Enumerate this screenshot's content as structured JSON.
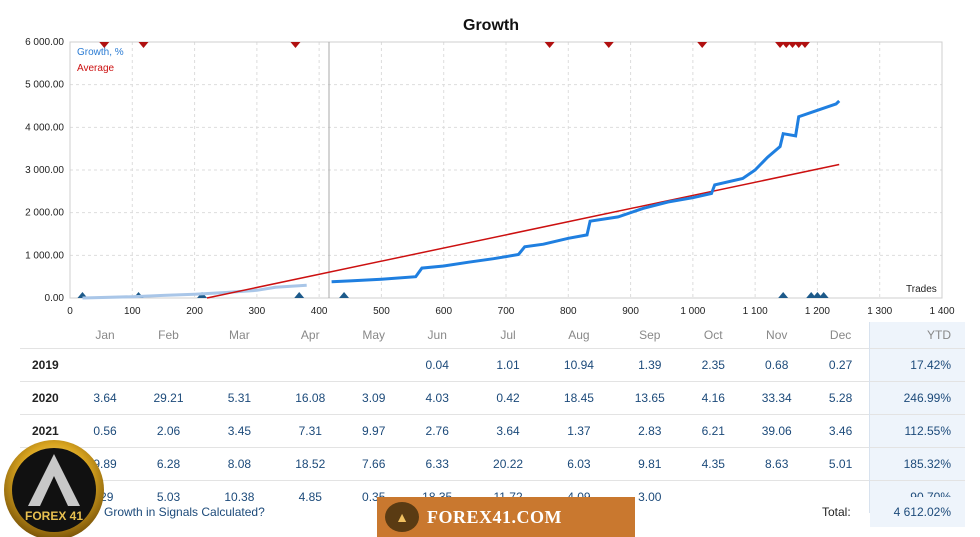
{
  "chart_data": {
    "type": "line",
    "title": "Growth",
    "xlabel": "Trades",
    "ylabel": "",
    "xlim": [
      0,
      1400
    ],
    "ylim": [
      0,
      6000
    ],
    "x_ticks": [
      "0",
      "100",
      "200",
      "300",
      "400",
      "500",
      "600",
      "700",
      "800",
      "900",
      "1 000",
      "1 100",
      "1 200",
      "1 300",
      "1 400"
    ],
    "y_ticks": [
      "0.00",
      "1 000.00",
      "2 000.00",
      "3 000.00",
      "4 000.00",
      "5 000.00",
      "6 000.00"
    ],
    "legend": [
      "Growth, %",
      "Average"
    ],
    "grid": true,
    "series": [
      {
        "name": "Growth, %",
        "color": "#1f7fe0",
        "points": [
          [
            20,
            0
          ],
          [
            100,
            30
          ],
          [
            150,
            60
          ],
          [
            200,
            90
          ],
          [
            250,
            130
          ],
          [
            300,
            180
          ],
          [
            330,
            250
          ],
          [
            380,
            300
          ],
          [
            420,
            380
          ],
          [
            450,
            400
          ],
          [
            500,
            440
          ],
          [
            555,
            500
          ],
          [
            565,
            700
          ],
          [
            600,
            750
          ],
          [
            640,
            840
          ],
          [
            680,
            920
          ],
          [
            720,
            1020
          ],
          [
            730,
            1200
          ],
          [
            760,
            1260
          ],
          [
            800,
            1400
          ],
          [
            830,
            1480
          ],
          [
            835,
            1800
          ],
          [
            880,
            1900
          ],
          [
            920,
            2100
          ],
          [
            960,
            2250
          ],
          [
            1000,
            2350
          ],
          [
            1030,
            2450
          ],
          [
            1035,
            2650
          ],
          [
            1080,
            2800
          ],
          [
            1100,
            3000
          ],
          [
            1120,
            3300
          ],
          [
            1140,
            3550
          ],
          [
            1145,
            3850
          ],
          [
            1165,
            3800
          ],
          [
            1170,
            4250
          ],
          [
            1200,
            4400
          ],
          [
            1230,
            4550
          ],
          [
            1235,
            4620
          ]
        ]
      },
      {
        "name": "Average",
        "color": "#cc1010",
        "points": [
          [
            220,
            0
          ],
          [
            1235,
            3130
          ]
        ]
      }
    ],
    "faded_until_x": 415
  },
  "table": {
    "months": [
      "Jan",
      "Feb",
      "Mar",
      "Apr",
      "May",
      "Jun",
      "Jul",
      "Aug",
      "Sep",
      "Oct",
      "Nov",
      "Dec"
    ],
    "ytd_label": "YTD",
    "rows": [
      {
        "year": "2019",
        "values": [
          "",
          "",
          "",
          "",
          "",
          "0.04",
          "1.01",
          "10.94",
          "1.39",
          "2.35",
          "0.68",
          "0.27"
        ],
        "ytd": "17.42%"
      },
      {
        "year": "2020",
        "values": [
          "3.64",
          "29.21",
          "5.31",
          "16.08",
          "3.09",
          "4.03",
          "0.42",
          "18.45",
          "13.65",
          "4.16",
          "33.34",
          "5.28"
        ],
        "ytd": "246.99%"
      },
      {
        "year": "2021",
        "values": [
          "0.56",
          "2.06",
          "3.45",
          "7.31",
          "9.97",
          "2.76",
          "3.64",
          "1.37",
          "2.83",
          "6.21",
          "39.06",
          "3.46"
        ],
        "ytd": "112.55%"
      },
      {
        "year": "",
        "values": [
          "9.89",
          "6.28",
          "8.08",
          "18.52",
          "7.66",
          "6.33",
          "20.22",
          "6.03",
          "9.81",
          "4.35",
          "8.63",
          "5.01"
        ],
        "ytd": "185.32%"
      },
      {
        "year": "",
        "values": [
          ".29",
          "5.03",
          "10.38",
          "4.85",
          "0.35",
          "18.35",
          "11.72",
          "4.09",
          "3.00",
          "",
          "",
          ""
        ],
        "ytd": "90.70%"
      }
    ]
  },
  "footer": {
    "faq_text": "Growth in Signals Calculated?",
    "total_label": "Total:",
    "total_value": "4 612.02%",
    "banner_text": "FOREX41.COM",
    "banner_logo_text": "FOREX 41",
    "corner_logo_text": "FOREX 41"
  }
}
